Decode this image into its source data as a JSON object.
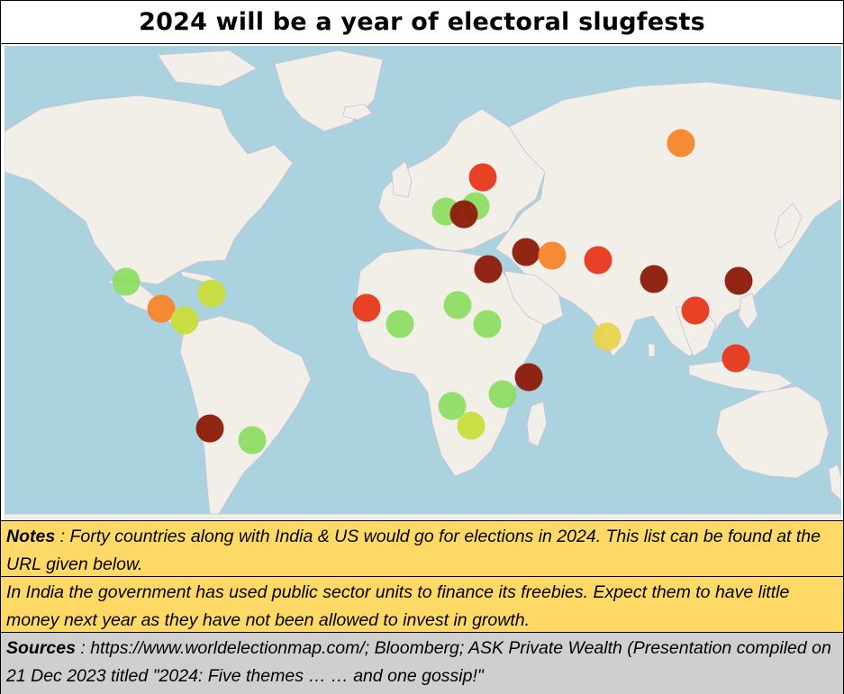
{
  "title": "2024 will be a year of electoral slugfests",
  "colors": {
    "ocean": "#aad3df",
    "land": "#f2efe9",
    "border_lines": "#b8a9c4",
    "notes_bg": "#ffd966",
    "sources_bg": "#d0cece",
    "marker_palette": [
      "#8b1a0a",
      "#e8371b",
      "#f5842b",
      "#e8d44d",
      "#c8dc3c",
      "#8edc64"
    ]
  },
  "map": {
    "type": "world-map",
    "markers": [
      {
        "region": "Russia",
        "color": "#f5842b"
      },
      {
        "region": "Belarus / Ukraine",
        "color": "#e8371b"
      },
      {
        "region": "Central Europe",
        "color": "#8edc64"
      },
      {
        "region": "Balkans",
        "color": "#8edc64"
      },
      {
        "region": "Balkans",
        "color": "#8b1a0a"
      },
      {
        "region": "Middle East",
        "color": "#8b1a0a"
      },
      {
        "region": "Iran",
        "color": "#f5842b"
      },
      {
        "region": "Pakistan",
        "color": "#e8371b"
      },
      {
        "region": "Egypt",
        "color": "#8b1a0a"
      },
      {
        "region": "India",
        "color": "#8b1a0a"
      },
      {
        "region": "Taiwan",
        "color": "#8b1a0a"
      },
      {
        "region": "Southeast Asia",
        "color": "#e8371b"
      },
      {
        "region": "Indonesia",
        "color": "#e8371b"
      },
      {
        "region": "Sri Lanka / Maldives",
        "color": "#e8d44d"
      },
      {
        "region": "Mexico",
        "color": "#8edc64"
      },
      {
        "region": "Central America",
        "color": "#f5842b"
      },
      {
        "region": "Panama",
        "color": "#c8dc3c"
      },
      {
        "region": "Caribbean",
        "color": "#c8dc3c"
      },
      {
        "region": "Senegal",
        "color": "#e8371b"
      },
      {
        "region": "Ghana",
        "color": "#8edc64"
      },
      {
        "region": "Chad",
        "color": "#8edc64"
      },
      {
        "region": "South Sudan",
        "color": "#8edc64"
      },
      {
        "region": "Comoros",
        "color": "#8b1a0a"
      },
      {
        "region": "Mozambique",
        "color": "#8edc64"
      },
      {
        "region": "Botswana",
        "color": "#8edc64"
      },
      {
        "region": "South Africa",
        "color": "#c8dc3c"
      },
      {
        "region": "Chile",
        "color": "#8b1a0a"
      },
      {
        "region": "Uruguay",
        "color": "#8edc64"
      }
    ]
  },
  "notes": {
    "label": "Notes",
    "text": " : Forty countries along with India & US would go for elections in 2024. This list can be found at the URL given below."
  },
  "india_note": "In India the government has used public sector units to finance its freebies.  Expect them to have little money next year as they have not been allowed to invest in growth.",
  "sources": {
    "label": "Sources",
    "text": " : https://www.worldelectionmap.com/; Bloomberg; ASK Private Wealth (Presentation compiled on 21 Dec 2023 titled \"2024: Five themes … … and one gossip!\""
  }
}
